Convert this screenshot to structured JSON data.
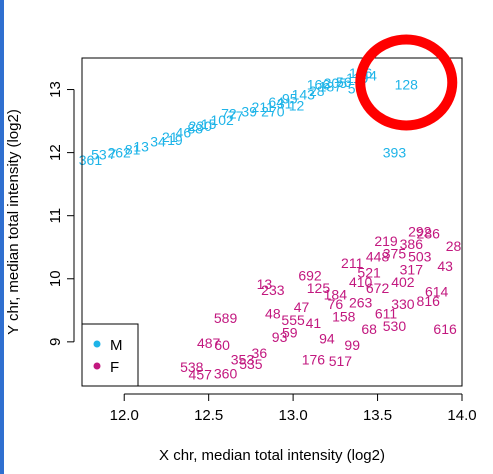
{
  "chart_data": {
    "type": "scatter",
    "xlabel": "X chr, median total intensity (log2)",
    "ylabel": "Y chr, median total intensity (log2)",
    "xlim": [
      11.75,
      14.0
    ],
    "ylim": [
      8.3,
      13.5
    ],
    "x_ticks": [
      "12.0",
      "12.5",
      "13.0",
      "13.5",
      "14.0"
    ],
    "y_ticks": [
      "9",
      "10",
      "11",
      "12",
      "13"
    ],
    "legend": {
      "position": "bottom-left",
      "entries": [
        {
          "label": "M",
          "color": "#1EB4E8"
        },
        {
          "label": "F",
          "color": "#C2187F"
        }
      ]
    },
    "series": [
      {
        "name": "M",
        "color": "#1EB4E8",
        "points": [
          {
            "label": "128",
            "x": 13.67,
            "y": 13.08
          },
          {
            "label": "393",
            "x": 13.6,
            "y": 12.0
          },
          {
            "label": "270",
            "x": 12.88,
            "y": 12.65
          },
          {
            "label": "12",
            "x": 13.02,
            "y": 12.75
          },
          {
            "label": "59",
            "x": 13.37,
            "y": 13.02
          },
          {
            "label": "53",
            "x": 11.85,
            "y": 11.97
          },
          {
            "label": "361",
            "x": 11.8,
            "y": 11.88
          },
          {
            "label": "7",
            "x": 11.93,
            "y": 11.98
          },
          {
            "label": "262",
            "x": 11.97,
            "y": 12.0
          },
          {
            "label": "13",
            "x": 12.1,
            "y": 12.1
          },
          {
            "label": "34",
            "x": 12.2,
            "y": 12.18
          },
          {
            "label": "21",
            "x": 12.27,
            "y": 12.25
          },
          {
            "label": "46",
            "x": 12.35,
            "y": 12.32
          },
          {
            "label": "88",
            "x": 12.42,
            "y": 12.38
          },
          {
            "label": "15",
            "x": 12.5,
            "y": 12.45
          },
          {
            "label": "102",
            "x": 12.58,
            "y": 12.52
          },
          {
            "label": "77",
            "x": 12.66,
            "y": 12.58
          },
          {
            "label": "39",
            "x": 12.74,
            "y": 12.65
          },
          {
            "label": "211",
            "x": 12.82,
            "y": 12.72
          },
          {
            "label": "64",
            "x": 12.9,
            "y": 12.8
          },
          {
            "label": "95",
            "x": 12.98,
            "y": 12.86
          },
          {
            "label": "143",
            "x": 13.06,
            "y": 12.92
          },
          {
            "label": "28",
            "x": 13.14,
            "y": 12.98
          },
          {
            "label": "187",
            "x": 13.22,
            "y": 13.05
          },
          {
            "label": "56",
            "x": 13.3,
            "y": 13.12
          },
          {
            "label": "119",
            "x": 13.38,
            "y": 13.18
          },
          {
            "label": "44",
            "x": 13.45,
            "y": 13.22
          },
          {
            "label": "166",
            "x": 13.15,
            "y": 13.08
          },
          {
            "label": "72",
            "x": 12.62,
            "y": 12.62
          },
          {
            "label": "230",
            "x": 12.45,
            "y": 12.42
          },
          {
            "label": "19",
            "x": 12.3,
            "y": 12.2
          },
          {
            "label": "81",
            "x": 12.05,
            "y": 12.05
          },
          {
            "label": "205",
            "x": 13.25,
            "y": 13.1
          },
          {
            "label": "31",
            "x": 12.95,
            "y": 12.78
          },
          {
            "label": "156",
            "x": 13.4,
            "y": 13.26
          }
        ]
      },
      {
        "name": "F",
        "color": "#C2187F",
        "points": [
          {
            "label": "86",
            "x": 12.0,
            "y": 8.78
          },
          {
            "label": "538",
            "x": 12.4,
            "y": 8.6
          },
          {
            "label": "457",
            "x": 12.45,
            "y": 8.48
          },
          {
            "label": "360",
            "x": 12.6,
            "y": 8.5
          },
          {
            "label": "589",
            "x": 12.6,
            "y": 9.38
          },
          {
            "label": "487",
            "x": 12.5,
            "y": 8.98
          },
          {
            "label": "60",
            "x": 12.58,
            "y": 8.95
          },
          {
            "label": "36",
            "x": 12.8,
            "y": 8.82
          },
          {
            "label": "353",
            "x": 12.7,
            "y": 8.72
          },
          {
            "label": "535",
            "x": 12.75,
            "y": 8.65
          },
          {
            "label": "93",
            "x": 12.92,
            "y": 9.08
          },
          {
            "label": "176",
            "x": 13.12,
            "y": 8.72
          },
          {
            "label": "517",
            "x": 13.28,
            "y": 8.7
          },
          {
            "label": "13",
            "x": 12.83,
            "y": 9.92
          },
          {
            "label": "233",
            "x": 12.88,
            "y": 9.82
          },
          {
            "label": "616",
            "x": 13.9,
            "y": 9.2
          },
          {
            "label": "816",
            "x": 13.8,
            "y": 9.65
          },
          {
            "label": "43",
            "x": 13.9,
            "y": 10.2
          },
          {
            "label": "28",
            "x": 13.95,
            "y": 10.52
          },
          {
            "label": "614",
            "x": 13.85,
            "y": 9.8
          },
          {
            "label": "99",
            "x": 13.35,
            "y": 8.95
          },
          {
            "label": "41",
            "x": 13.12,
            "y": 9.3
          },
          {
            "label": "59",
            "x": 12.98,
            "y": 9.15
          },
          {
            "label": "48",
            "x": 12.88,
            "y": 9.45
          },
          {
            "label": "292",
            "x": 13.75,
            "y": 10.75
          },
          {
            "label": "286",
            "x": 13.8,
            "y": 10.72
          },
          {
            "label": "692",
            "x": 13.1,
            "y": 10.05
          },
          {
            "label": "448",
            "x": 13.5,
            "y": 10.35
          },
          {
            "label": "375",
            "x": 13.6,
            "y": 10.4
          },
          {
            "label": "521",
            "x": 13.45,
            "y": 10.1
          },
          {
            "label": "184",
            "x": 13.25,
            "y": 9.75
          },
          {
            "label": "263",
            "x": 13.4,
            "y": 9.62
          },
          {
            "label": "611",
            "x": 13.55,
            "y": 9.45
          },
          {
            "label": "402",
            "x": 13.65,
            "y": 9.95
          },
          {
            "label": "317",
            "x": 13.7,
            "y": 10.15
          },
          {
            "label": "158",
            "x": 13.3,
            "y": 9.4
          },
          {
            "label": "94",
            "x": 13.2,
            "y": 9.05
          },
          {
            "label": "672",
            "x": 13.5,
            "y": 9.85
          },
          {
            "label": "530",
            "x": 13.6,
            "y": 9.25
          },
          {
            "label": "211",
            "x": 13.35,
            "y": 10.25
          },
          {
            "label": "47",
            "x": 13.05,
            "y": 9.55
          },
          {
            "label": "386",
            "x": 13.7,
            "y": 10.55
          },
          {
            "label": "125",
            "x": 13.15,
            "y": 9.85
          },
          {
            "label": "68",
            "x": 13.45,
            "y": 9.2
          },
          {
            "label": "503",
            "x": 13.75,
            "y": 10.35
          },
          {
            "label": "219",
            "x": 13.55,
            "y": 10.6
          },
          {
            "label": "330",
            "x": 13.65,
            "y": 9.6
          },
          {
            "label": "76",
            "x": 13.25,
            "y": 9.6
          },
          {
            "label": "410",
            "x": 13.4,
            "y": 9.95
          },
          {
            "label": "555",
            "x": 13.0,
            "y": 9.35
          }
        ]
      }
    ],
    "annotations": [
      {
        "type": "circle",
        "color": "#FF0000",
        "x": 13.67,
        "y": 13.08
      }
    ]
  }
}
